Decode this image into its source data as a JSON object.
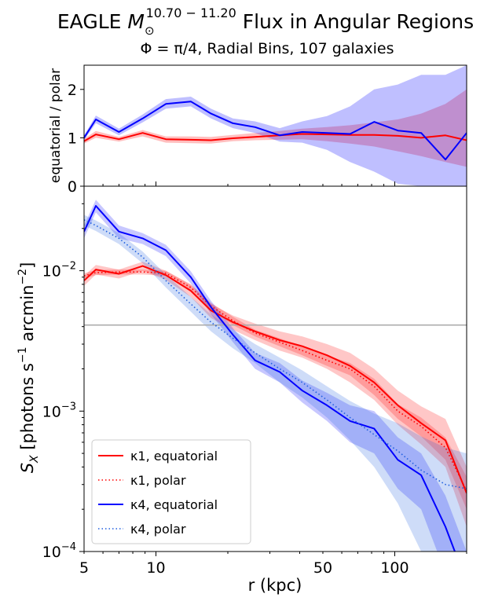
{
  "header": {
    "title_prefix": "EAGLE ",
    "title_mass_base": "M",
    "title_mass_sub": "⊙",
    "title_mass_sup": "10.70 − 11.20",
    "title_suffix": " Flux in Angular Regions",
    "subtitle": "Φ = π/4, Radial Bins, 107 galaxies"
  },
  "chart_data": [
    {
      "type": "line",
      "panel": "ratio",
      "ylabel": "equatorial / polar",
      "xscale": "log",
      "xlim": [
        5,
        200
      ],
      "ylim": [
        0,
        2.5
      ],
      "yticks": [
        0,
        1,
        2
      ],
      "ytick_labels": [
        "0",
        "1",
        "2"
      ],
      "series": [
        {
          "color": "#ff0000",
          "x": [
            5,
            5.6,
            7,
            8.8,
            11,
            14,
            17,
            21,
            26,
            33,
            41,
            52,
            65,
            82,
            103,
            129,
            163,
            200
          ],
          "y": [
            0.93,
            1.07,
            0.97,
            1.1,
            0.97,
            0.96,
            0.95,
            0.99,
            1.02,
            1.05,
            1.08,
            1.07,
            1.06,
            1.06,
            1.04,
            1.0,
            1.05,
            0.95
          ],
          "band_lo": [
            0.88,
            1.0,
            0.92,
            1.03,
            0.9,
            0.89,
            0.88,
            0.93,
            0.95,
            0.96,
            0.97,
            0.93,
            0.88,
            0.82,
            0.72,
            0.62,
            0.5,
            0.4
          ],
          "band_hi": [
            0.98,
            1.14,
            1.02,
            1.16,
            1.03,
            1.03,
            1.02,
            1.06,
            1.1,
            1.14,
            1.19,
            1.22,
            1.26,
            1.32,
            1.38,
            1.5,
            1.7,
            2.0
          ]
        },
        {
          "color": "#0000ff",
          "x": [
            5,
            5.6,
            7,
            8.8,
            11,
            14,
            17,
            21,
            26,
            33,
            41,
            52,
            65,
            82,
            103,
            129,
            163,
            200
          ],
          "y": [
            1.0,
            1.38,
            1.12,
            1.4,
            1.7,
            1.75,
            1.5,
            1.3,
            1.22,
            1.05,
            1.12,
            1.1,
            1.08,
            1.33,
            1.15,
            1.1,
            0.55,
            1.1
          ],
          "band_lo": [
            0.95,
            1.3,
            1.05,
            1.32,
            1.6,
            1.65,
            1.4,
            1.2,
            1.1,
            0.92,
            0.9,
            0.75,
            0.5,
            0.3,
            0.05,
            0.0,
            0.0,
            0.0
          ],
          "band_hi": [
            1.05,
            1.46,
            1.19,
            1.48,
            1.8,
            1.85,
            1.6,
            1.4,
            1.34,
            1.2,
            1.34,
            1.45,
            1.65,
            2.0,
            2.1,
            2.3,
            2.3,
            2.5
          ]
        }
      ]
    },
    {
      "type": "line",
      "panel": "main",
      "xlabel": "r (kpc)",
      "ylabel_base": "S",
      "ylabel_sub": "X",
      "ylabel_rest": " [photons s",
      "ylabel_sup1": "−1",
      "ylabel_mid": " arcmin",
      "ylabel_sup2": "−2",
      "ylabel_end": "]",
      "xscale": "log",
      "yscale": "log",
      "xlim": [
        5,
        200
      ],
      "ylim": [
        0.0001,
        0.04
      ],
      "xticks": [
        5,
        10,
        50,
        100
      ],
      "xtick_labels": [
        "5",
        "10",
        "50",
        "100"
      ],
      "yticks": [
        0.0001,
        0.001,
        0.01
      ],
      "ytick_labels": [
        "10",
        "10",
        "10"
      ],
      "ytick_exponents": [
        "−4",
        "−3",
        "−2"
      ],
      "hline": 0.0041,
      "legend": {
        "placement": "lower left",
        "entries": [
          "κ1, equatorial",
          "κ1, polar",
          "κ4, equatorial",
          "κ4, polar"
        ]
      },
      "series": [
        {
          "name": "κ1, equatorial",
          "color": "#ff0000",
          "style": "solid",
          "x": [
            5,
            5.6,
            7,
            8.8,
            11,
            14,
            17,
            21,
            26,
            33,
            41,
            52,
            65,
            82,
            103,
            129,
            163,
            200
          ],
          "y": [
            0.0085,
            0.0102,
            0.0095,
            0.0108,
            0.0093,
            0.0072,
            0.0052,
            0.0043,
            0.0037,
            0.0032,
            0.0029,
            0.0025,
            0.0021,
            0.0016,
            0.0011,
            0.00082,
            0.00062,
            0.00026
          ],
          "band_lo": [
            0.0078,
            0.0094,
            0.0088,
            0.01,
            0.0086,
            0.0065,
            0.0046,
            0.0038,
            0.0032,
            0.0027,
            0.0024,
            0.002,
            0.0016,
            0.0012,
            0.0008,
            0.00058,
            0.0004,
            0.00015
          ],
          "band_hi": [
            0.0092,
            0.011,
            0.0102,
            0.0116,
            0.01,
            0.0079,
            0.0058,
            0.0048,
            0.0042,
            0.0037,
            0.0034,
            0.003,
            0.0026,
            0.002,
            0.0014,
            0.00108,
            0.00088,
            0.0004
          ]
        },
        {
          "name": "κ1, polar",
          "color": "#ff0000",
          "style": "dotted",
          "x": [
            5,
            5.6,
            7,
            8.8,
            11,
            14,
            17,
            21,
            26,
            33,
            41,
            52,
            65,
            82,
            103,
            129,
            163,
            200
          ],
          "y": [
            0.0092,
            0.0097,
            0.0098,
            0.0098,
            0.0096,
            0.0076,
            0.0056,
            0.0044,
            0.0036,
            0.0031,
            0.0027,
            0.0023,
            0.002,
            0.0015,
            0.001,
            0.00078,
            0.00055,
            0.00027
          ],
          "band_lo": [
            0.0088,
            0.0093,
            0.0094,
            0.0094,
            0.0092,
            0.0072,
            0.0053,
            0.0041,
            0.0034,
            0.0029,
            0.0025,
            0.0021,
            0.0018,
            0.0013,
            0.00088,
            0.00066,
            0.00045,
            0.0002
          ],
          "band_hi": [
            0.0096,
            0.0101,
            0.0102,
            0.0102,
            0.01,
            0.008,
            0.0059,
            0.0047,
            0.0038,
            0.0033,
            0.0029,
            0.0025,
            0.0022,
            0.0017,
            0.00112,
            0.0009,
            0.00065,
            0.00034
          ]
        },
        {
          "name": "κ4, equatorial",
          "color": "#0000ff",
          "style": "solid",
          "x": [
            5,
            5.6,
            7,
            8.8,
            11,
            14,
            17,
            21,
            26,
            33,
            41,
            52,
            65,
            82,
            103,
            129,
            163,
            200
          ],
          "y": [
            0.019,
            0.029,
            0.019,
            0.017,
            0.014,
            0.009,
            0.0055,
            0.0035,
            0.0023,
            0.0019,
            0.0014,
            0.0011,
            0.00085,
            0.00075,
            0.00045,
            0.00035,
            0.00015,
            6e-05
          ],
          "band_lo": [
            0.017,
            0.026,
            0.017,
            0.0155,
            0.0127,
            0.0081,
            0.0049,
            0.0031,
            0.002,
            0.0016,
            0.00115,
            0.00085,
            0.0006,
            0.0005,
            0.00028,
            0.0002,
            7e-05,
            5e-05
          ],
          "band_hi": [
            0.021,
            0.032,
            0.021,
            0.0185,
            0.0153,
            0.0099,
            0.0061,
            0.0039,
            0.0026,
            0.0022,
            0.00165,
            0.00135,
            0.0011,
            0.001,
            0.00065,
            0.0005,
            0.00025,
            0.0001
          ]
        },
        {
          "name": "κ4, polar",
          "color": "#1f5fe0",
          "style": "dotted",
          "x": [
            5,
            5.6,
            7,
            8.8,
            11,
            14,
            17,
            21,
            26,
            33,
            41,
            52,
            65,
            82,
            103,
            129,
            163,
            200
          ],
          "y": [
            0.023,
            0.021,
            0.017,
            0.0125,
            0.0085,
            0.0058,
            0.0043,
            0.0033,
            0.0026,
            0.002,
            0.0016,
            0.0012,
            0.0009,
            0.00068,
            0.00052,
            0.00038,
            0.0003,
            0.00028
          ],
          "band_lo": [
            0.021,
            0.0192,
            0.0155,
            0.0113,
            0.0076,
            0.0051,
            0.0037,
            0.0028,
            0.0022,
            0.0016,
            0.00125,
            0.0009,
            0.00062,
            0.0004,
            0.00022,
            0.0001,
            5e-05,
            5e-05
          ],
          "band_hi": [
            0.025,
            0.0228,
            0.0185,
            0.0137,
            0.0094,
            0.0065,
            0.0049,
            0.0038,
            0.003,
            0.0024,
            0.00195,
            0.0015,
            0.00118,
            0.00096,
            0.00082,
            0.00066,
            0.00055,
            0.0005
          ]
        }
      ]
    }
  ]
}
